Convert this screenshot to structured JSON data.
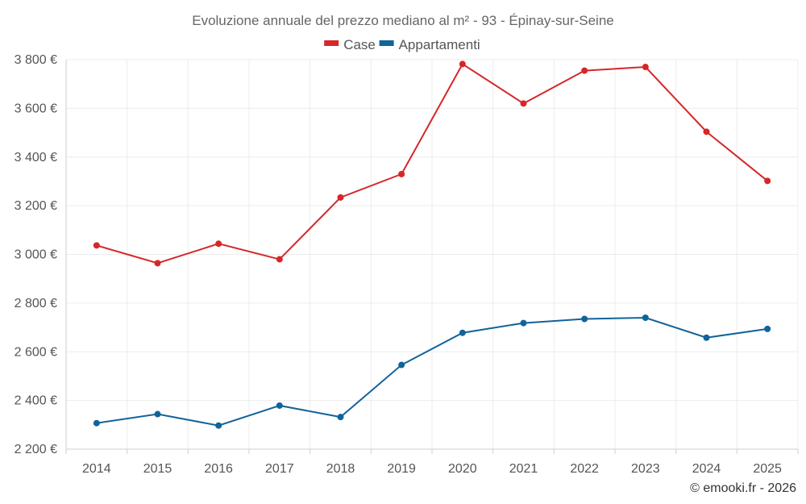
{
  "chart_data": {
    "type": "line",
    "title": "Evoluzione annuale del prezzo mediano al m² - 93 - Épinay-sur-Seine",
    "categories": [
      "2014",
      "2015",
      "2016",
      "2017",
      "2018",
      "2019",
      "2020",
      "2021",
      "2022",
      "2023",
      "2024",
      "2025"
    ],
    "series": [
      {
        "name": "Case",
        "color": "#d62728",
        "values": [
          3037,
          2964,
          3044,
          2980,
          3234,
          3330,
          3782,
          3620,
          3755,
          3770,
          3504,
          3302
        ]
      },
      {
        "name": "Appartamenti",
        "color": "#11639a",
        "values": [
          2307,
          2344,
          2297,
          2379,
          2332,
          2546,
          2678,
          2718,
          2735,
          2740,
          2658,
          2694
        ]
      }
    ],
    "yticks": [
      "3 800 €",
      "3 600 €",
      "3 400 €",
      "3 200 €",
      "3 000 €",
      "2 800 €",
      "2 600 €",
      "2 400 €",
      "2 200 €"
    ],
    "ytick_values": [
      3800,
      3600,
      3400,
      3200,
      3000,
      2800,
      2600,
      2400,
      2200
    ],
    "ylim": [
      2200,
      3800
    ],
    "legend_position": "top-center",
    "xlabel": "",
    "ylabel": "",
    "grid": true
  },
  "credit": "© emooki.fr - 2026"
}
